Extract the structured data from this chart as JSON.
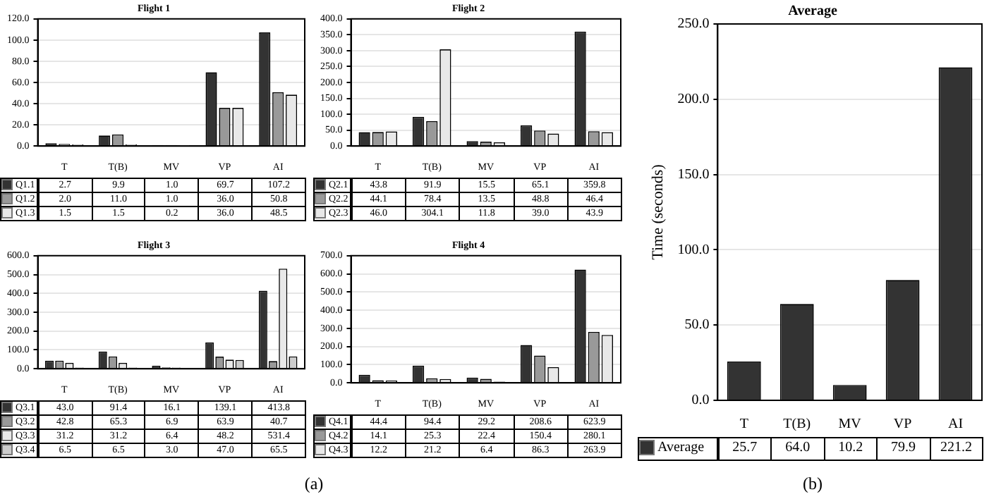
{
  "chart_data": [
    {
      "type": "bar",
      "title": "Flight 1",
      "categories": [
        "T",
        "T(B)",
        "MV",
        "VP",
        "AI"
      ],
      "ylim": [
        0,
        120
      ],
      "yticks": [
        {
          "value": 0,
          "label": "0.0"
        },
        {
          "value": 20,
          "label": "20.0"
        },
        {
          "value": 40,
          "label": "40.0"
        },
        {
          "value": 60,
          "label": "60.0"
        },
        {
          "value": 80,
          "label": "80.0"
        },
        {
          "value": 100,
          "label": "100.0"
        },
        {
          "value": 120,
          "label": "120.0"
        }
      ],
      "grid": "y",
      "legend": "bottom left",
      "series": [
        {
          "name": "Q1.1",
          "color": "#333333",
          "values": [
            2.7,
            9.9,
            1.0,
            69.7,
            107.2
          ],
          "value_labels": [
            "2.7",
            "9.9",
            "1.0",
            "69.7",
            "107.2"
          ]
        },
        {
          "name": "Q1.2",
          "color": "#999999",
          "values": [
            2.0,
            11.0,
            1.0,
            36.0,
            50.8
          ],
          "value_labels": [
            "2.0",
            "11.0",
            "1.0",
            "36.0",
            "50.8"
          ]
        },
        {
          "name": "Q1.3",
          "color": "#e8e8e8",
          "values": [
            1.5,
            1.5,
            0.2,
            36.0,
            48.5
          ],
          "value_labels": [
            "1.5",
            "1.5",
            "0.2",
            "36.0",
            "48.5"
          ]
        }
      ]
    },
    {
      "type": "bar",
      "title": "Flight 2",
      "categories": [
        "T",
        "T(B)",
        "MV",
        "VP",
        "AI"
      ],
      "ylim": [
        0,
        400
      ],
      "yticks": [
        {
          "value": 0,
          "label": "0.0"
        },
        {
          "value": 50,
          "label": "50.0"
        },
        {
          "value": 100,
          "label": "100.0"
        },
        {
          "value": 150,
          "label": "150.0"
        },
        {
          "value": 200,
          "label": "200.0"
        },
        {
          "value": 250,
          "label": "250.0"
        },
        {
          "value": 300,
          "label": "300.0"
        },
        {
          "value": 350,
          "label": "350.0"
        },
        {
          "value": 400,
          "label": "400.0"
        }
      ],
      "grid": "y",
      "legend": "bottom left",
      "series": [
        {
          "name": "Q2.1",
          "color": "#333333",
          "values": [
            43.8,
            91.9,
            15.5,
            65.1,
            359.8
          ],
          "value_labels": [
            "43.8",
            "91.9",
            "15.5",
            "65.1",
            "359.8"
          ]
        },
        {
          "name": "Q2.2",
          "color": "#999999",
          "values": [
            44.1,
            78.4,
            13.5,
            48.8,
            46.4
          ],
          "value_labels": [
            "44.1",
            "78.4",
            "13.5",
            "48.8",
            "46.4"
          ]
        },
        {
          "name": "Q2.3",
          "color": "#e8e8e8",
          "values": [
            46.0,
            304.1,
            11.8,
            39.0,
            43.9
          ],
          "value_labels": [
            "46.0",
            "304.1",
            "11.8",
            "39.0",
            "43.9"
          ]
        }
      ]
    },
    {
      "type": "bar",
      "title": "Flight 3",
      "categories": [
        "T",
        "T(B)",
        "MV",
        "VP",
        "AI"
      ],
      "ylim": [
        0,
        600
      ],
      "yticks": [
        {
          "value": 0,
          "label": "0.0"
        },
        {
          "value": 100,
          "label": "100.0"
        },
        {
          "value": 200,
          "label": "200.0"
        },
        {
          "value": 300,
          "label": "300.0"
        },
        {
          "value": 400,
          "label": "400.0"
        },
        {
          "value": 500,
          "label": "500.0"
        },
        {
          "value": 600,
          "label": "600.0"
        }
      ],
      "grid": "y",
      "legend": "bottom left",
      "annotations": [
        "(a)"
      ],
      "series": [
        {
          "name": "Q3.1",
          "color": "#333333",
          "values": [
            43.0,
            91.4,
            16.1,
            139.1,
            413.8
          ],
          "value_labels": [
            "43.0",
            "91.4",
            "16.1",
            "139.1",
            "413.8"
          ]
        },
        {
          "name": "Q3.2",
          "color": "#999999",
          "values": [
            42.8,
            65.3,
            6.9,
            63.9,
            40.7
          ],
          "value_labels": [
            "42.8",
            "65.3",
            "6.9",
            "63.9",
            "40.7"
          ]
        },
        {
          "name": "Q3.3",
          "color": "#e8e8e8",
          "values": [
            31.2,
            31.2,
            6.4,
            48.2,
            531.4
          ],
          "value_labels": [
            "31.2",
            "31.2",
            "6.4",
            "48.2",
            "531.4"
          ]
        },
        {
          "name": "Q3.4",
          "color": "#cccccc",
          "values": [
            6.5,
            6.5,
            3.0,
            47.0,
            65.5
          ],
          "value_labels": [
            "6.5",
            "6.5",
            "3.0",
            "47.0",
            "65.5"
          ]
        }
      ]
    },
    {
      "type": "bar",
      "title": "Flight 4",
      "categories": [
        "T",
        "T(B)",
        "MV",
        "VP",
        "AI"
      ],
      "ylim": [
        0,
        700
      ],
      "yticks": [
        {
          "value": 0,
          "label": "0.0"
        },
        {
          "value": 100,
          "label": "100.0"
        },
        {
          "value": 200,
          "label": "200.0"
        },
        {
          "value": 300,
          "label": "300.0"
        },
        {
          "value": 400,
          "label": "400.0"
        },
        {
          "value": 500,
          "label": "500.0"
        },
        {
          "value": 600,
          "label": "600.0"
        },
        {
          "value": 700,
          "label": "700.0"
        }
      ],
      "grid": "y",
      "legend": "bottom left",
      "series": [
        {
          "name": "Q4.1",
          "color": "#333333",
          "values": [
            44.4,
            94.4,
            29.2,
            208.6,
            623.9
          ],
          "value_labels": [
            "44.4",
            "94.4",
            "29.2",
            "208.6",
            "623.9"
          ]
        },
        {
          "name": "Q4.2",
          "color": "#999999",
          "values": [
            14.1,
            25.3,
            22.4,
            150.4,
            280.1
          ],
          "value_labels": [
            "14.1",
            "25.3",
            "22.4",
            "150.4",
            "280.1"
          ]
        },
        {
          "name": "Q4.3",
          "color": "#e8e8e8",
          "values": [
            12.2,
            21.2,
            6.4,
            86.3,
            263.9
          ],
          "value_labels": [
            "12.2",
            "21.2",
            "6.4",
            "86.3",
            "263.9"
          ]
        }
      ]
    },
    {
      "type": "bar",
      "title": "Average",
      "ylabel": "Time (seconds)",
      "categories": [
        "T",
        "T(B)",
        "MV",
        "VP",
        "AI"
      ],
      "ylim": [
        0,
        250
      ],
      "yticks": [
        {
          "value": 0,
          "label": "0.0"
        },
        {
          "value": 50,
          "label": "50.0"
        },
        {
          "value": 100,
          "label": "100.0"
        },
        {
          "value": 150,
          "label": "150.0"
        },
        {
          "value": 200,
          "label": "200.0"
        },
        {
          "value": 250,
          "label": "250.0"
        }
      ],
      "grid": "y",
      "legend": "bottom left",
      "annotations": [
        "(b)"
      ],
      "series": [
        {
          "name": "Average",
          "color": "#333333",
          "values": [
            25.7,
            64.0,
            10.2,
            79.9,
            221.2
          ],
          "value_labels": [
            "25.7",
            "64.0",
            "10.2",
            "79.9",
            "221.2"
          ]
        }
      ]
    }
  ]
}
